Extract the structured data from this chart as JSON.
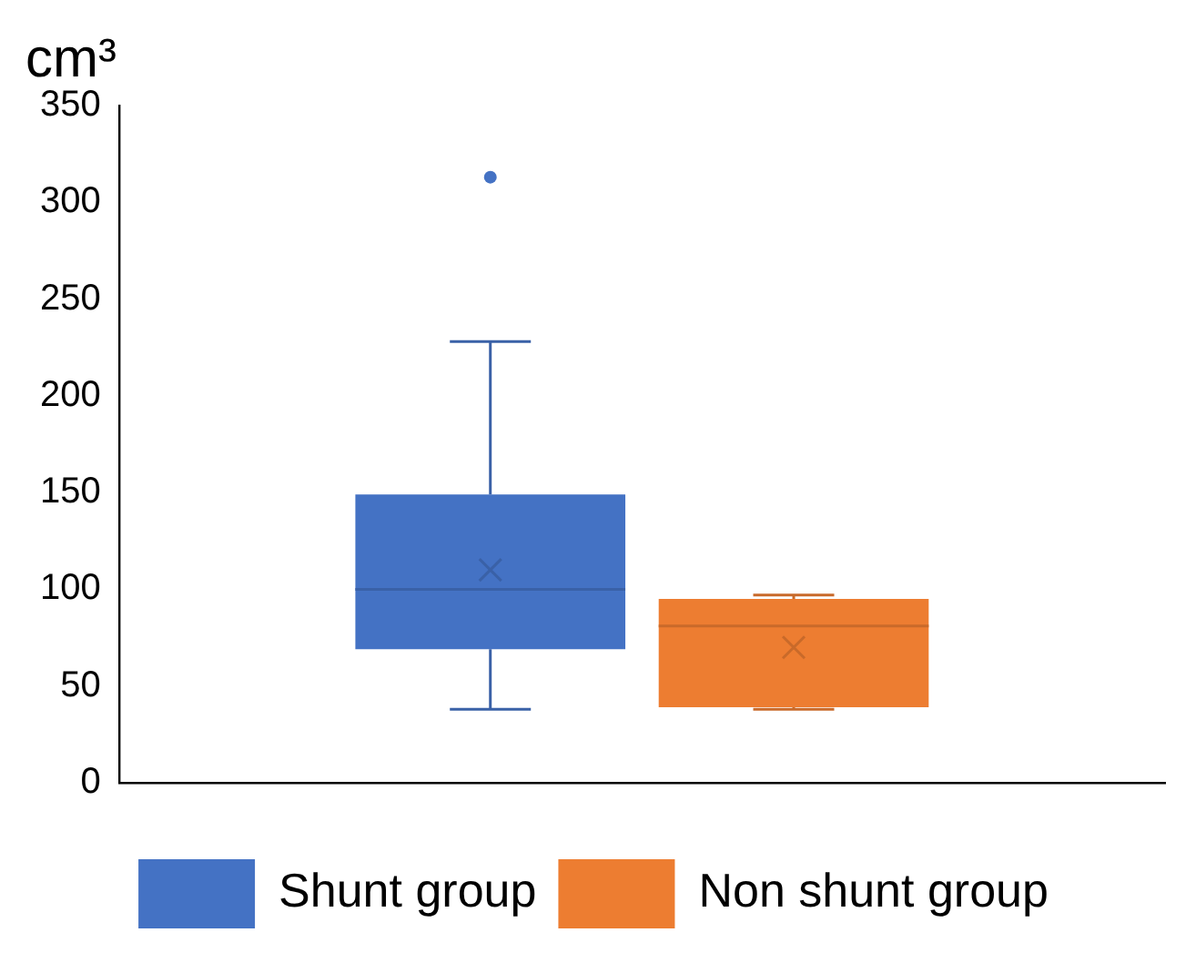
{
  "chart_data": {
    "type": "box",
    "ylabel": "cm³",
    "categories": [
      null
    ],
    "ylim": [
      0,
      350
    ],
    "yticks": [
      0,
      50,
      100,
      150,
      200,
      250,
      300,
      350
    ],
    "grid": false,
    "legend": "bottom",
    "series": [
      {
        "name": "Shunt group",
        "color": "#4472c4",
        "boxes": [
          {
            "low": 38,
            "q1": 69,
            "median": 100,
            "q3": 149,
            "high": 228,
            "mean": 110,
            "outliers": [
              313
            ]
          }
        ]
      },
      {
        "name": "Non shunt group",
        "color": "#ed7d31",
        "boxes": [
          {
            "low": 38,
            "q1": 39,
            "median": 81,
            "q3": 95,
            "high": 97,
            "mean": 70
          }
        ]
      }
    ]
  }
}
